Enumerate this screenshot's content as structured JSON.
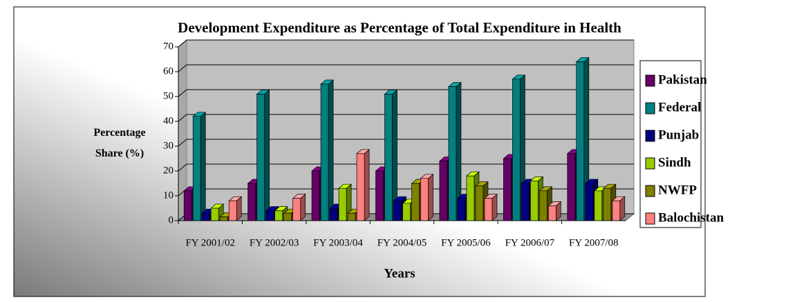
{
  "chart_data": {
    "type": "bar3d",
    "title": "Development Expenditure as Percentage of Total Expenditure in Health",
    "x_label": "Years",
    "y_label": "Percentage Share (%)",
    "categories": [
      "FY 2001/02",
      "FY 2002/03",
      "FY 2003/04",
      "FY 2004/05",
      "FY 2005/06",
      "FY 2006/07",
      "FY 2007/08"
    ],
    "series": [
      {
        "name": "Pakistan",
        "color": "#660066",
        "values": [
          12,
          15,
          20,
          20,
          24,
          25,
          27
        ]
      },
      {
        "name": "Federal",
        "color": "#008080",
        "values": [
          42,
          51,
          55,
          51,
          54,
          57,
          64
        ]
      },
      {
        "name": "Punjab",
        "color": "#000080",
        "values": [
          3,
          4,
          5,
          8,
          9,
          15,
          15
        ]
      },
      {
        "name": "Sindh",
        "color": "#99cc00",
        "values": [
          5,
          4,
          13,
          7,
          18,
          16,
          12
        ]
      },
      {
        "name": "NWFP",
        "color": "#808000",
        "values": [
          1.5,
          3,
          3,
          15,
          14,
          12,
          13
        ]
      },
      {
        "name": "Balochistan",
        "color": "#ff8080",
        "values": [
          8,
          9,
          27,
          17,
          9,
          6,
          8
        ]
      }
    ],
    "ylim": [
      0,
      70
    ],
    "yticks": [
      0,
      10,
      20,
      30,
      40,
      50,
      60,
      70
    ],
    "grid": true,
    "legend": "right"
  }
}
